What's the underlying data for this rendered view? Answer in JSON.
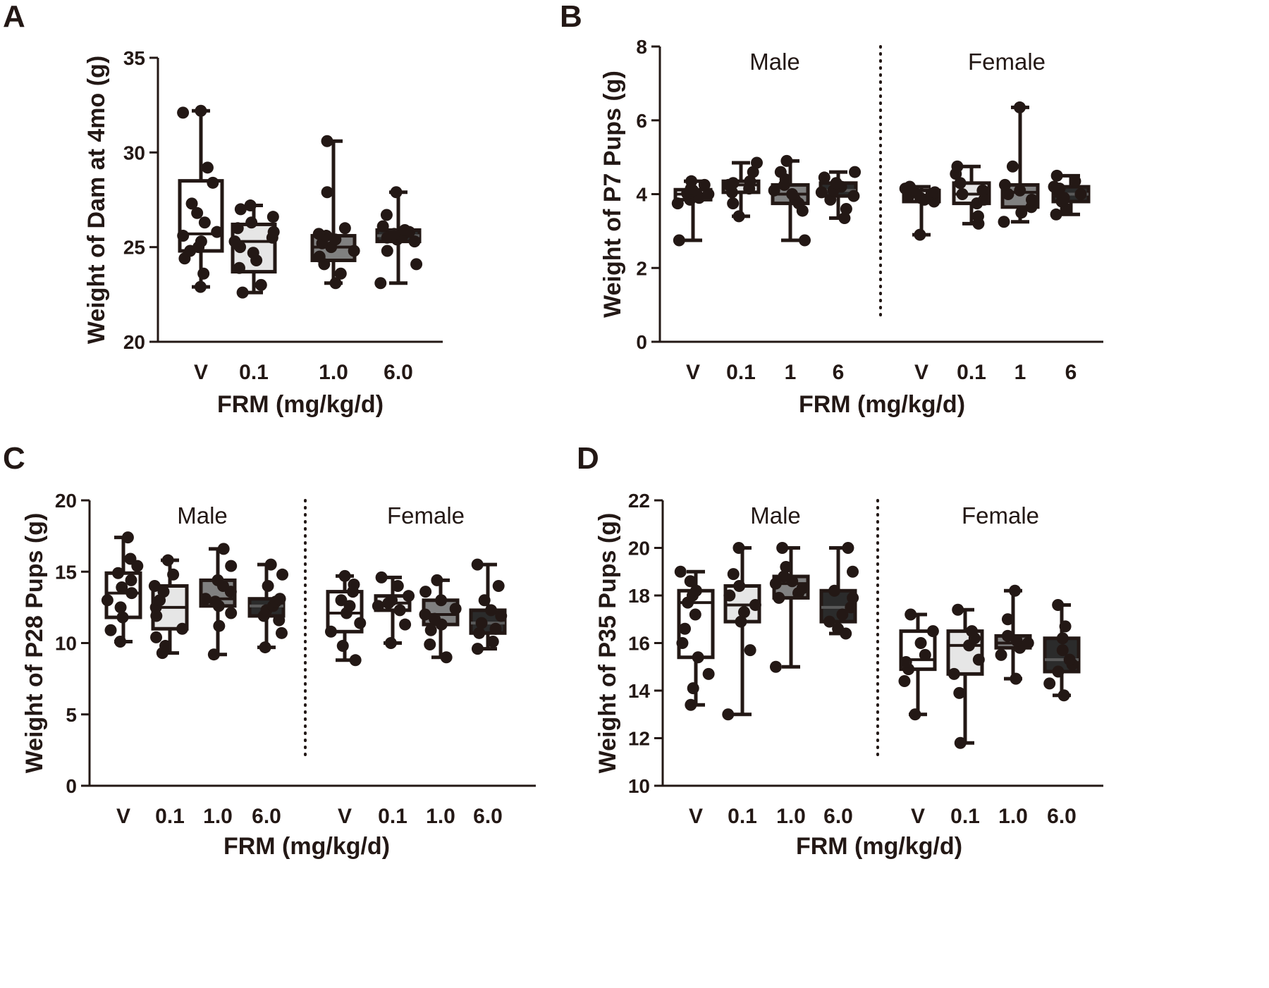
{
  "chart_data": [
    {
      "id": "A",
      "type": "boxplot",
      "panel_label": "A",
      "ylabel": "Weight of Dam at 4mo (g)",
      "xlabel": "FRM (mg/kg/d)",
      "ylim": [
        20,
        35
      ],
      "yticks": [
        20,
        25,
        30,
        35
      ],
      "groups": [
        {
          "label": "",
          "categories": [
            "V",
            "0.1",
            "1.0",
            "6.0"
          ],
          "boxes": [
            {
              "category": "V",
              "fill": "#ffffff",
              "min": 22.9,
              "q1": 24.8,
              "median": 25.7,
              "q3": 28.5,
              "max": 32.2,
              "points": [
                22.9,
                23.6,
                24.4,
                24.8,
                25.0,
                25.3,
                25.6,
                25.8,
                26.3,
                26.8,
                27.3,
                28.4,
                29.2,
                32.1,
                32.2
              ]
            },
            {
              "category": "0.1",
              "fill": "#e6e6e6",
              "min": 22.6,
              "q1": 23.7,
              "median": 25.3,
              "q3": 26.2,
              "max": 27.2,
              "points": [
                22.6,
                23.0,
                23.9,
                24.3,
                24.7,
                25.0,
                25.3,
                25.5,
                25.8,
                26.0,
                26.3,
                26.6,
                27.0,
                27.2
              ]
            },
            {
              "category": "1.0",
              "fill": "#808080",
              "min": 23.1,
              "q1": 24.3,
              "median": 25.0,
              "q3": 25.6,
              "max": 30.6,
              "points": [
                23.1,
                23.6,
                24.1,
                24.5,
                24.8,
                25.0,
                25.2,
                25.4,
                25.6,
                25.7,
                26.0,
                27.9,
                30.6
              ]
            },
            {
              "category": "6.0",
              "fill": "#2b2b2b",
              "min": 23.1,
              "q1": 25.3,
              "median": 25.6,
              "q3": 25.9,
              "max": 27.9,
              "points": [
                23.1,
                24.1,
                24.8,
                25.3,
                25.4,
                25.5,
                25.6,
                25.7,
                25.8,
                25.9,
                26.1,
                26.7,
                27.9
              ]
            }
          ]
        }
      ]
    },
    {
      "id": "B",
      "type": "boxplot",
      "panel_label": "B",
      "ylabel": "Weight of P7 Pups (g)",
      "xlabel": "FRM (mg/kg/d)",
      "ylim": [
        0,
        8
      ],
      "yticks": [
        0,
        2,
        4,
        6,
        8
      ],
      "groups": [
        {
          "label": "Male",
          "categories": [
            "V",
            "0.1",
            "1",
            "6"
          ],
          "boxes": [
            {
              "category": "V",
              "fill": "#ffffff",
              "min": 2.75,
              "q1": 3.85,
              "median": 4.0,
              "q3": 4.12,
              "max": 4.35,
              "points": [
                2.75,
                3.75,
                3.85,
                3.9,
                3.95,
                4.0,
                4.02,
                4.05,
                4.1,
                4.15,
                4.25,
                4.35
              ]
            },
            {
              "category": "0.1",
              "fill": "#e6e6e6",
              "min": 3.4,
              "q1": 4.05,
              "median": 4.25,
              "q3": 4.35,
              "max": 4.85,
              "points": [
                3.4,
                3.75,
                4.05,
                4.15,
                4.25,
                4.3,
                4.35,
                4.6,
                4.85
              ]
            },
            {
              "category": "1",
              "fill": "#808080",
              "min": 2.75,
              "q1": 3.75,
              "median": 4.0,
              "q3": 4.25,
              "max": 4.9,
              "points": [
                2.75,
                3.55,
                3.75,
                3.85,
                4.0,
                4.1,
                4.25,
                4.4,
                4.6,
                4.9
              ]
            },
            {
              "category": "6",
              "fill": "#2b2b2b",
              "min": 3.35,
              "q1": 3.95,
              "median": 4.1,
              "q3": 4.3,
              "max": 4.6,
              "points": [
                3.35,
                3.6,
                3.85,
                3.95,
                4.05,
                4.1,
                4.2,
                4.3,
                4.45,
                4.6
              ]
            }
          ]
        },
        {
          "label": "Female",
          "categories": [
            "V",
            "0.1",
            "1",
            "6"
          ],
          "boxes": [
            {
              "category": "V",
              "fill": "#ffffff",
              "min": 2.9,
              "q1": 3.8,
              "median": 3.95,
              "q3": 4.1,
              "max": 4.2,
              "points": [
                2.9,
                3.8,
                3.85,
                3.9,
                3.95,
                4.0,
                4.05,
                4.1,
                4.15,
                4.2
              ]
            },
            {
              "category": "0.1",
              "fill": "#e6e6e6",
              "min": 3.2,
              "q1": 3.75,
              "median": 4.0,
              "q3": 4.3,
              "max": 4.75,
              "points": [
                3.2,
                3.4,
                3.75,
                3.85,
                4.0,
                4.1,
                4.3,
                4.55,
                4.75
              ]
            },
            {
              "category": "1",
              "fill": "#808080",
              "min": 3.25,
              "q1": 3.65,
              "median": 4.05,
              "q3": 4.25,
              "max": 6.35,
              "points": [
                3.25,
                3.5,
                3.65,
                3.85,
                4.0,
                4.1,
                4.25,
                4.75,
                6.35
              ]
            },
            {
              "category": "6",
              "fill": "#2b2b2b",
              "min": 3.45,
              "q1": 3.8,
              "median": 4.0,
              "q3": 4.2,
              "max": 4.5,
              "points": [
                3.45,
                3.6,
                3.8,
                3.9,
                4.0,
                4.05,
                4.15,
                4.2,
                4.35,
                4.5
              ]
            }
          ]
        }
      ]
    },
    {
      "id": "C",
      "type": "boxplot",
      "panel_label": "C",
      "ylabel": "Weight of P28 Pups (g)",
      "xlabel": "FRM (mg/kg/d)",
      "ylim": [
        0,
        20
      ],
      "yticks": [
        0,
        5,
        10,
        15,
        20
      ],
      "groups": [
        {
          "label": "Male",
          "categories": [
            "V",
            "0.1",
            "1.0",
            "6.0"
          ],
          "boxes": [
            {
              "category": "V",
              "fill": "#ffffff",
              "min": 10.1,
              "q1": 11.8,
              "median": 13.5,
              "q3": 14.9,
              "max": 17.4,
              "points": [
                10.1,
                10.9,
                11.8,
                12.5,
                13.0,
                13.5,
                13.9,
                14.4,
                14.9,
                15.4,
                15.9,
                17.4
              ]
            },
            {
              "category": "0.1",
              "fill": "#e6e6e6",
              "min": 9.3,
              "q1": 11.0,
              "median": 12.5,
              "q3": 14.0,
              "max": 15.8,
              "points": [
                9.3,
                9.8,
                10.4,
                11.0,
                11.9,
                12.5,
                13.0,
                13.6,
                14.0,
                14.8,
                15.8
              ]
            },
            {
              "category": "1.0",
              "fill": "#808080",
              "min": 9.2,
              "q1": 12.6,
              "median": 13.1,
              "q3": 14.4,
              "max": 16.6,
              "points": [
                9.2,
                11.2,
                12.1,
                12.6,
                12.9,
                13.1,
                13.6,
                14.0,
                14.4,
                15.4,
                16.6
              ]
            },
            {
              "category": "6.0",
              "fill": "#2b2b2b",
              "min": 9.7,
              "q1": 11.9,
              "median": 12.6,
              "q3": 13.1,
              "max": 15.5,
              "points": [
                9.7,
                10.7,
                11.6,
                11.9,
                12.3,
                12.6,
                12.9,
                13.1,
                14.0,
                14.8,
                15.5
              ]
            }
          ]
        },
        {
          "label": "Female",
          "categories": [
            "V",
            "0.1",
            "1.0",
            "6.0"
          ],
          "boxes": [
            {
              "category": "V",
              "fill": "#ffffff",
              "min": 8.8,
              "q1": 10.8,
              "median": 12.1,
              "q3": 13.6,
              "max": 14.7,
              "points": [
                8.8,
                9.8,
                10.8,
                11.4,
                12.1,
                12.6,
                13.0,
                13.6,
                14.1,
                14.7
              ]
            },
            {
              "category": "0.1",
              "fill": "#e6e6e6",
              "min": 10.0,
              "q1": 12.3,
              "median": 12.8,
              "q3": 13.3,
              "max": 14.6,
              "points": [
                10.0,
                11.3,
                12.3,
                12.6,
                12.8,
                13.0,
                13.3,
                14.0,
                14.6
              ]
            },
            {
              "category": "1.0",
              "fill": "#808080",
              "min": 9.0,
              "q1": 11.3,
              "median": 12.0,
              "q3": 13.0,
              "max": 14.4,
              "points": [
                9.0,
                9.9,
                10.9,
                11.3,
                11.7,
                12.0,
                12.4,
                13.0,
                13.6,
                14.4
              ]
            },
            {
              "category": "6.0",
              "fill": "#2b2b2b",
              "min": 9.6,
              "q1": 10.7,
              "median": 11.4,
              "q3": 12.3,
              "max": 15.5,
              "points": [
                9.6,
                10.1,
                10.7,
                11.0,
                11.4,
                11.9,
                12.3,
                13.0,
                14.0,
                15.5
              ]
            }
          ]
        }
      ]
    },
    {
      "id": "D",
      "type": "boxplot",
      "panel_label": "D",
      "ylabel": "Weight of P35 Pups (g)",
      "xlabel": "FRM (mg/kg/d)",
      "ylim": [
        10,
        22
      ],
      "yticks": [
        10,
        12,
        14,
        16,
        18,
        20,
        22
      ],
      "groups": [
        {
          "label": "Male",
          "categories": [
            "V",
            "0.1",
            "1.0",
            "6.0"
          ],
          "boxes": [
            {
              "category": "V",
              "fill": "#ffffff",
              "min": 13.4,
              "q1": 15.4,
              "median": 17.7,
              "q3": 18.2,
              "max": 19.0,
              "points": [
                13.4,
                14.1,
                14.7,
                15.4,
                16.0,
                16.6,
                17.2,
                17.7,
                18.0,
                18.2,
                18.6,
                19.0
              ]
            },
            {
              "category": "0.1",
              "fill": "#e6e6e6",
              "min": 13.0,
              "q1": 16.9,
              "median": 17.6,
              "q3": 18.4,
              "max": 20.0,
              "points": [
                13.0,
                15.7,
                16.9,
                17.3,
                17.6,
                18.0,
                18.4,
                18.9,
                20.0
              ]
            },
            {
              "category": "1.0",
              "fill": "#808080",
              "min": 15.0,
              "q1": 17.9,
              "median": 18.5,
              "q3": 18.8,
              "max": 20.0,
              "points": [
                15.0,
                17.9,
                18.1,
                18.3,
                18.5,
                18.6,
                18.8,
                19.2,
                20.0
              ]
            },
            {
              "category": "6.0",
              "fill": "#2b2b2b",
              "min": 16.4,
              "q1": 16.9,
              "median": 17.5,
              "q3": 18.2,
              "max": 20.0,
              "points": [
                16.4,
                16.6,
                16.9,
                17.2,
                17.5,
                17.9,
                18.2,
                19.0,
                20.0
              ]
            }
          ]
        },
        {
          "label": "Female",
          "categories": [
            "V",
            "0.1",
            "1.0",
            "6.0"
          ],
          "boxes": [
            {
              "category": "V",
              "fill": "#ffffff",
              "min": 13.0,
              "q1": 14.9,
              "median": 15.3,
              "q3": 16.5,
              "max": 17.2,
              "points": [
                13.0,
                14.4,
                14.9,
                15.2,
                15.5,
                16.0,
                16.5,
                17.2
              ]
            },
            {
              "category": "0.1",
              "fill": "#e6e6e6",
              "min": 11.8,
              "q1": 14.7,
              "median": 15.9,
              "q3": 16.5,
              "max": 17.4,
              "points": [
                11.8,
                13.9,
                14.7,
                15.3,
                15.9,
                16.2,
                16.5,
                17.4
              ]
            },
            {
              "category": "1.0",
              "fill": "#808080",
              "min": 14.5,
              "q1": 15.8,
              "median": 16.0,
              "q3": 16.3,
              "max": 18.2,
              "points": [
                14.5,
                15.5,
                15.8,
                16.0,
                16.1,
                16.3,
                17.0,
                18.2
              ]
            },
            {
              "category": "6.0",
              "fill": "#2b2b2b",
              "min": 13.8,
              "q1": 14.8,
              "median": 15.3,
              "q3": 16.2,
              "max": 17.6,
              "points": [
                13.8,
                14.3,
                14.8,
                15.1,
                15.3,
                15.7,
                16.2,
                16.7,
                17.6
              ]
            }
          ]
        }
      ]
    }
  ]
}
